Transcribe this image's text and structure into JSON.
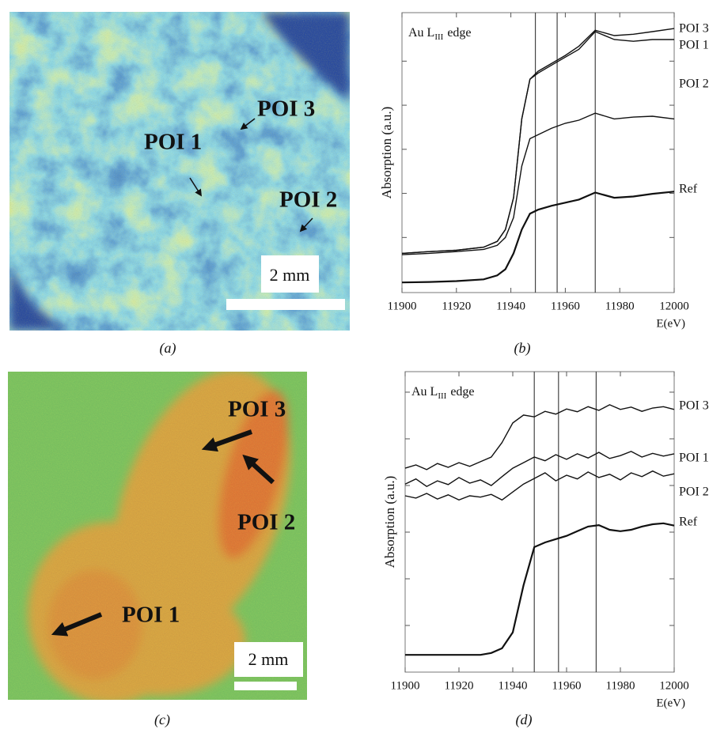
{
  "maps": [
    {
      "caption": "(a)",
      "labels": [
        "POI 3",
        "POI 1",
        "POI 2"
      ],
      "scale_bar": "2 mm"
    },
    {
      "caption": "(c)",
      "labels": [
        "POI 3",
        "POI 2",
        "POI 1"
      ],
      "scale_bar": "2 mm"
    }
  ],
  "chart_data": [
    {
      "type": "line",
      "caption": "(b)",
      "annotation_main": "Au L",
      "annotation_sub": "III",
      "annotation_rest": "edge",
      "ylabel": "Absorption (a.u.)",
      "xlabel": "E(eV)",
      "x": [
        11900,
        11910,
        11920,
        11930,
        11935,
        11938,
        11941,
        11944,
        11947,
        11950,
        11955,
        11960,
        11965,
        11971,
        11978,
        11985,
        11992,
        12000
      ],
      "series": [
        {
          "name": "POI 3",
          "color": "#111111",
          "values": [
            0.64,
            0.68,
            0.71,
            0.78,
            0.91,
            1.18,
            1.9,
            3.69,
            4.59,
            4.77,
            4.95,
            5.13,
            5.34,
            5.7,
            5.58,
            5.61,
            5.67,
            5.74
          ]
        },
        {
          "name": "POI 1",
          "color": "#111111",
          "values": [
            0.64,
            0.68,
            0.71,
            0.78,
            0.91,
            1.18,
            1.9,
            3.69,
            4.59,
            4.73,
            4.91,
            5.09,
            5.27,
            5.67,
            5.49,
            5.45,
            5.49,
            5.49
          ]
        },
        {
          "name": "POI 2",
          "color": "#111111",
          "values": [
            0.61,
            0.64,
            0.68,
            0.73,
            0.82,
            1.0,
            1.45,
            2.62,
            3.24,
            3.33,
            3.48,
            3.59,
            3.66,
            3.82,
            3.69,
            3.73,
            3.75,
            3.69
          ]
        },
        {
          "name": "Ref",
          "color": "#111111",
          "values": [
            -0.02,
            -0.01,
            0.01,
            0.05,
            0.14,
            0.28,
            0.64,
            1.18,
            1.54,
            1.63,
            1.72,
            1.79,
            1.86,
            2.02,
            1.9,
            1.93,
            1.99,
            2.04
          ]
        }
      ],
      "xlim": [
        11900,
        12000
      ],
      "xticks": [
        11900,
        11920,
        11940,
        11960,
        11980,
        12000
      ],
      "ylim": [
        -0.25,
        6.1
      ],
      "yticks": [
        1,
        2,
        3,
        4,
        5
      ],
      "vlines": [
        11949,
        11957,
        11971
      ]
    },
    {
      "type": "line",
      "caption": "(d)",
      "annotation_main": "Au L",
      "annotation_sub": "III",
      "annotation_rest": "edge",
      "ylabel": "Absorption (a.u.)",
      "xlabel": "E(eV)",
      "x": [
        11900,
        11904,
        11908,
        11912,
        11916,
        11920,
        11924,
        11928,
        11932,
        11936,
        11940,
        11944,
        11948,
        11952,
        11956,
        11960,
        11964,
        11968,
        11972,
        11976,
        11980,
        11984,
        11988,
        11992,
        11996,
        12000
      ],
      "series": [
        {
          "name": "POI 3",
          "color": "#111111",
          "values": [
            4.37,
            4.44,
            4.34,
            4.47,
            4.39,
            4.49,
            4.41,
            4.51,
            4.61,
            4.92,
            5.34,
            5.51,
            5.47,
            5.59,
            5.53,
            5.64,
            5.58,
            5.69,
            5.61,
            5.73,
            5.63,
            5.68,
            5.59,
            5.66,
            5.69,
            5.63
          ]
        },
        {
          "name": "POI 1",
          "color": "#111111",
          "values": [
            4.03,
            4.14,
            3.98,
            4.1,
            4.02,
            4.17,
            4.05,
            4.12,
            4.0,
            4.19,
            4.37,
            4.49,
            4.61,
            4.53,
            4.66,
            4.56,
            4.68,
            4.59,
            4.71,
            4.58,
            4.64,
            4.73,
            4.61,
            4.69,
            4.63,
            4.68
          ]
        },
        {
          "name": "POI 2",
          "color": "#111111",
          "values": [
            3.78,
            3.73,
            3.83,
            3.71,
            3.8,
            3.69,
            3.78,
            3.75,
            3.81,
            3.69,
            3.86,
            4.03,
            4.15,
            4.27,
            4.1,
            4.22,
            4.14,
            4.29,
            4.17,
            4.24,
            4.12,
            4.27,
            4.19,
            4.31,
            4.2,
            4.25
          ]
        },
        {
          "name": "Ref",
          "color": "#111111",
          "values": [
            0.37,
            0.37,
            0.37,
            0.37,
            0.37,
            0.37,
            0.37,
            0.37,
            0.41,
            0.51,
            0.85,
            1.86,
            2.68,
            2.78,
            2.85,
            2.92,
            3.02,
            3.12,
            3.15,
            3.05,
            3.02,
            3.05,
            3.12,
            3.17,
            3.19,
            3.14
          ]
        }
      ],
      "xlim": [
        11900,
        12000
      ],
      "xticks": [
        11900,
        11920,
        11940,
        11960,
        11980,
        12000
      ],
      "ylim": [
        0,
        6.44
      ],
      "yticks": [
        1,
        2,
        3,
        4,
        5,
        6
      ],
      "vlines": [
        11948,
        11957,
        11971
      ]
    }
  ]
}
